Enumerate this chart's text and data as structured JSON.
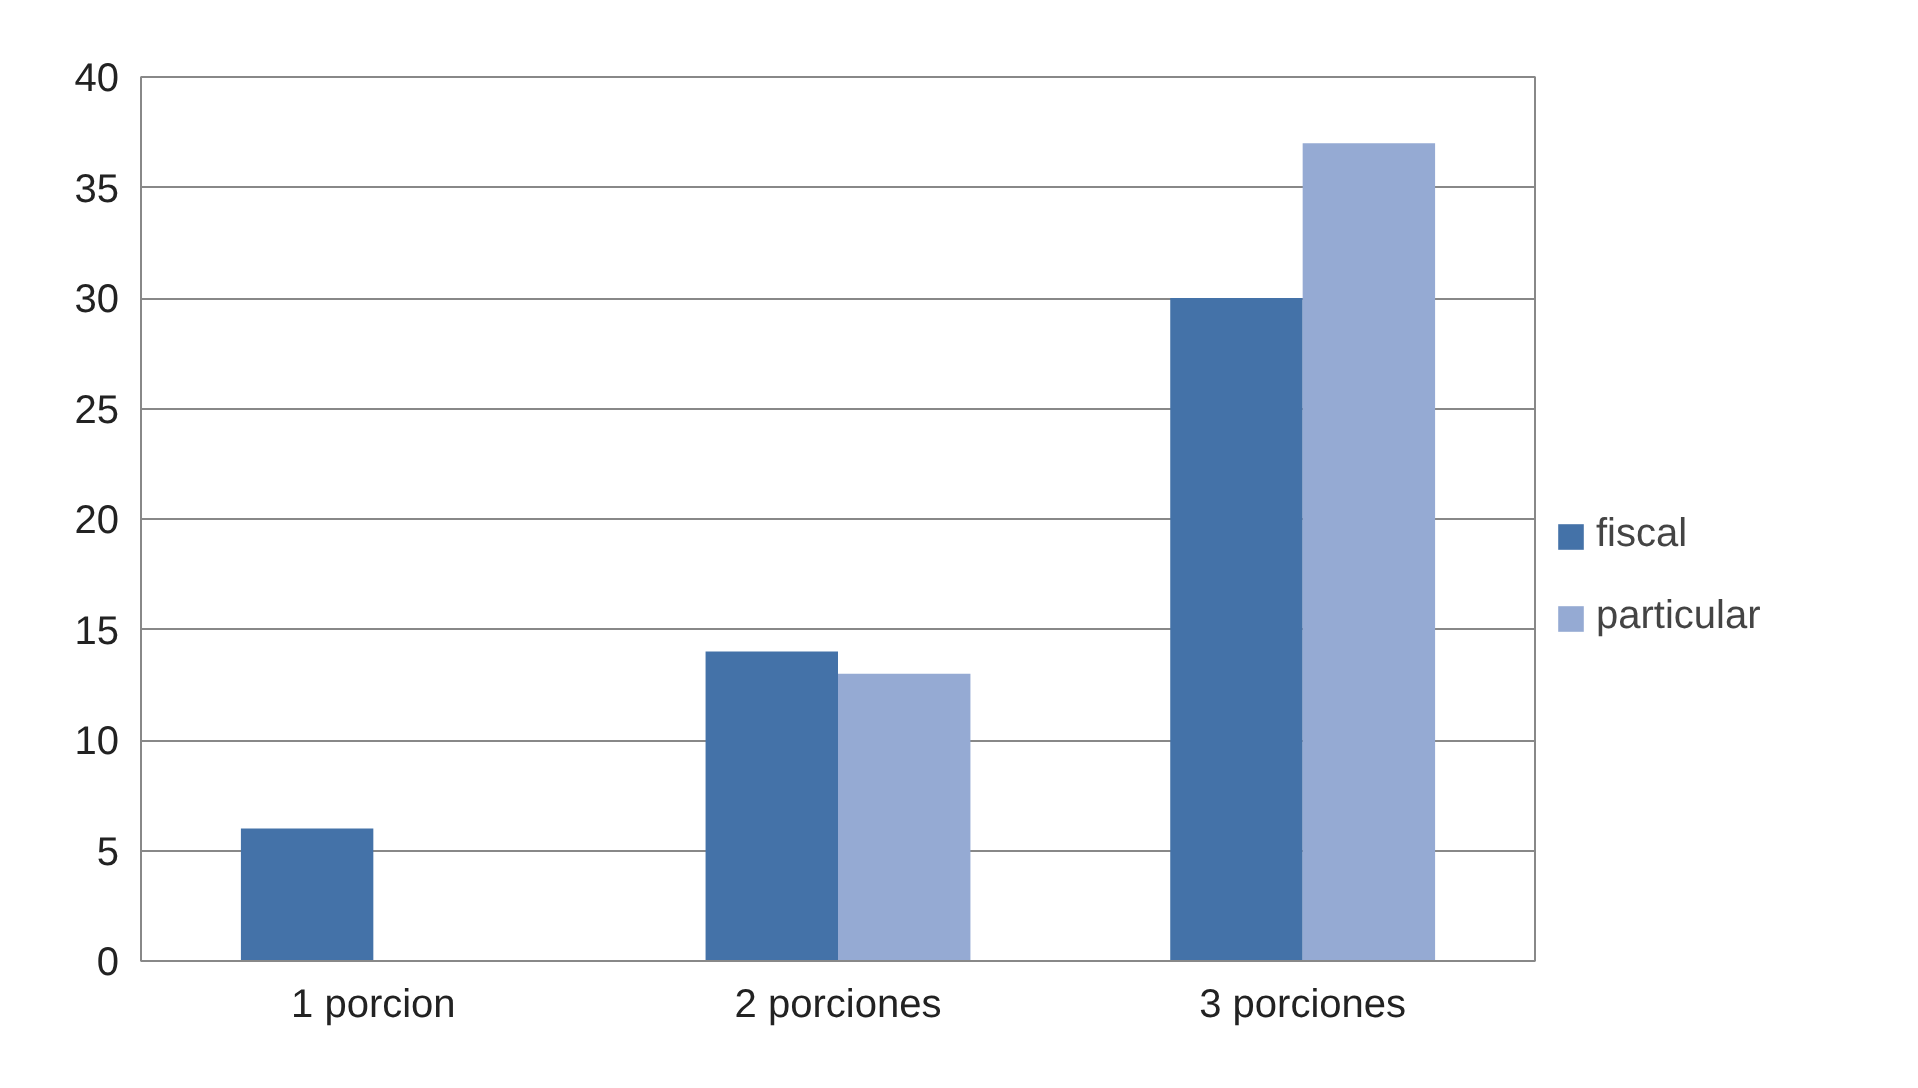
{
  "chart_data": {
    "type": "bar",
    "categories": [
      "1 porcion",
      "2 porciones",
      "3 porciones"
    ],
    "series": [
      {
        "name": "fiscal",
        "color": "#4472a8",
        "values": [
          6,
          14,
          30
        ]
      },
      {
        "name": "particular",
        "color": "#95aad3",
        "values": [
          0,
          13,
          37
        ]
      }
    ],
    "ylim": [
      0,
      40
    ],
    "yticks": [
      0,
      5,
      10,
      15,
      20,
      25,
      30,
      35,
      40
    ],
    "grid": "y",
    "legend": "right"
  }
}
